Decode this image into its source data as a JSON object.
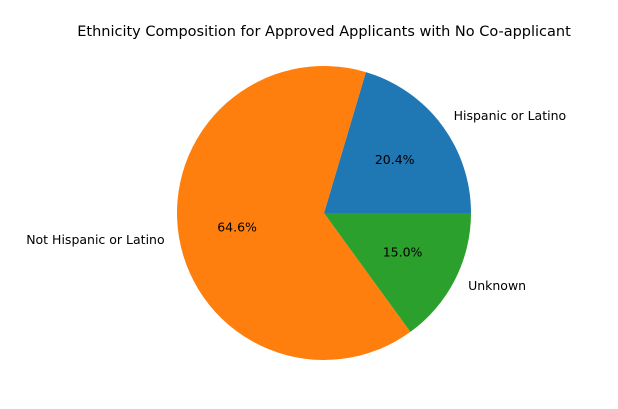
{
  "chart_data": {
    "type": "pie",
    "title": "Ethnicity Composition for Approved Applicants with No Co-applicant",
    "slices": [
      {
        "label": "Hispanic or Latino",
        "value": 20.4,
        "pct_label": "20.4%",
        "color": "#1f77b4"
      },
      {
        "label": "Not Hispanic or Latino",
        "value": 64.6,
        "pct_label": "64.6%",
        "color": "#ff7f0e"
      },
      {
        "label": "Unknown",
        "value": 15.0,
        "pct_label": "15.0%",
        "color": "#2ca02c"
      }
    ],
    "start_angle_deg": 0,
    "direction": "counterclockwise",
    "legend": "none"
  }
}
